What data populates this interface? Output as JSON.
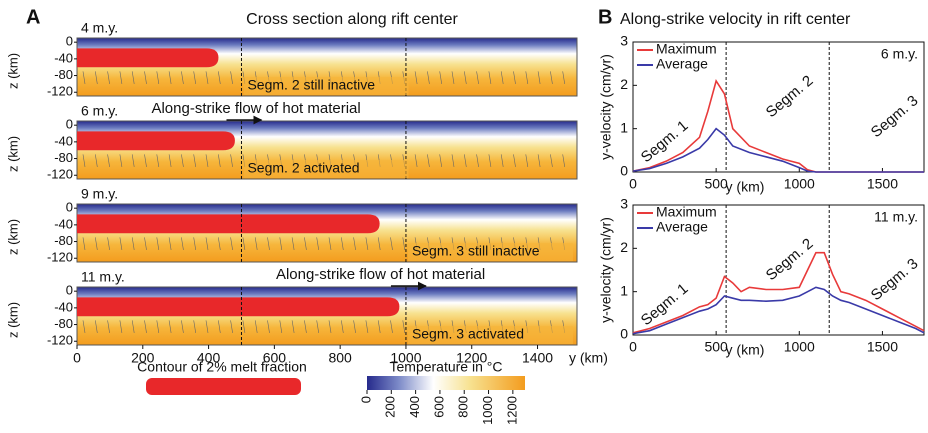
{
  "chart_data": [
    {
      "type": "section",
      "label": "A",
      "title": "Cross section along rift center",
      "xlabel": "y (km)",
      "ylabel": "z (km)",
      "xlim": [
        0,
        1520
      ],
      "xticks": [
        0,
        200,
        400,
        600,
        800,
        1000,
        1200,
        1400
      ],
      "ylim": [
        -129,
        10
      ],
      "yticks": [
        0,
        -40,
        -80,
        -120
      ],
      "boundaries": [
        500,
        1000
      ],
      "sections": [
        {
          "time": "4 m.y.",
          "annotation": "Segm. 2 still inactive",
          "melt_extent": 430
        },
        {
          "time": "6 m.y.",
          "flow": "Along-strike flow of hot material",
          "annotation": "Segm. 2 activated",
          "melt_extent": 480
        },
        {
          "time": "9 m.y.",
          "annotation": "Segm. 3 still inactive",
          "melt_extent": 920
        },
        {
          "time": "11 m.y.",
          "flow": "Along-strike flow of hot material",
          "annotation": "Segm. 3 activated",
          "melt_extent": 980
        }
      ],
      "legend": "Contour of 2% melt fraction",
      "melt_color": "#e8282a",
      "colorbar": {
        "title": "Temperature in °C",
        "lim": [
          0,
          1300
        ],
        "ticks": [
          0,
          200,
          400,
          600,
          800,
          1000,
          1200
        ]
      }
    },
    {
      "type": "line",
      "label": "B",
      "title": "Along-strike velocity in rift center",
      "time": "6 m.y.",
      "xlabel": "y (km)",
      "ylabel": "y-velocity (cm/yr)",
      "xlim": [
        0,
        1750
      ],
      "xticks": [
        0,
        500,
        1000,
        1500
      ],
      "ylim": [
        0,
        3
      ],
      "yticks": [
        0,
        1,
        2,
        3
      ],
      "boundaries": [
        560,
        1180
      ],
      "segments": [
        "Segm. 1",
        "Segm. 2",
        "Segm. 3"
      ],
      "x": [
        0,
        100,
        200,
        300,
        400,
        450,
        500,
        550,
        600,
        700,
        800,
        900,
        1000,
        1050,
        1100,
        1200,
        1300,
        1400,
        1500,
        1600,
        1750
      ],
      "series": [
        {
          "name": "Maximum",
          "color": "#e83a3a",
          "values": [
            0.02,
            0.1,
            0.25,
            0.45,
            0.8,
            1.4,
            2.1,
            1.8,
            1.0,
            0.6,
            0.45,
            0.3,
            0.2,
            0.05,
            0,
            0,
            0,
            0,
            0,
            0,
            0
          ]
        },
        {
          "name": "Average",
          "color": "#3a3aa8",
          "values": [
            0.02,
            0.08,
            0.2,
            0.35,
            0.55,
            0.75,
            1.0,
            0.85,
            0.6,
            0.45,
            0.35,
            0.25,
            0.1,
            0.02,
            0,
            0,
            0,
            0,
            0,
            0,
            0
          ]
        }
      ]
    },
    {
      "type": "line",
      "time": "11 m.y.",
      "xlabel": "y (km)",
      "ylabel": "y-velocity (cm/yr)",
      "xlim": [
        0,
        1750
      ],
      "xticks": [
        0,
        500,
        1000,
        1500
      ],
      "ylim": [
        0,
        3
      ],
      "yticks": [
        0,
        1,
        2,
        3
      ],
      "boundaries": [
        560,
        1180
      ],
      "segments": [
        "Segm. 1",
        "Segm. 2",
        "Segm. 3"
      ],
      "x": [
        0,
        100,
        200,
        300,
        400,
        450,
        500,
        550,
        600,
        650,
        700,
        800,
        900,
        1000,
        1050,
        1100,
        1150,
        1200,
        1250,
        1300,
        1400,
        1500,
        1600,
        1700,
        1750
      ],
      "series": [
        {
          "name": "Maximum",
          "color": "#e83a3a",
          "values": [
            0.05,
            0.15,
            0.3,
            0.45,
            0.65,
            0.7,
            0.85,
            1.35,
            1.2,
            1.0,
            1.1,
            1.05,
            1.05,
            1.1,
            1.5,
            1.9,
            1.9,
            1.4,
            1.0,
            0.95,
            0.8,
            0.6,
            0.4,
            0.2,
            0.1
          ]
        },
        {
          "name": "Average",
          "color": "#3a3aa8",
          "values": [
            0.03,
            0.1,
            0.25,
            0.4,
            0.55,
            0.6,
            0.7,
            0.9,
            0.85,
            0.8,
            0.8,
            0.78,
            0.8,
            0.9,
            1.0,
            1.1,
            1.05,
            0.9,
            0.8,
            0.75,
            0.6,
            0.45,
            0.3,
            0.15,
            0.05
          ]
        }
      ]
    }
  ]
}
